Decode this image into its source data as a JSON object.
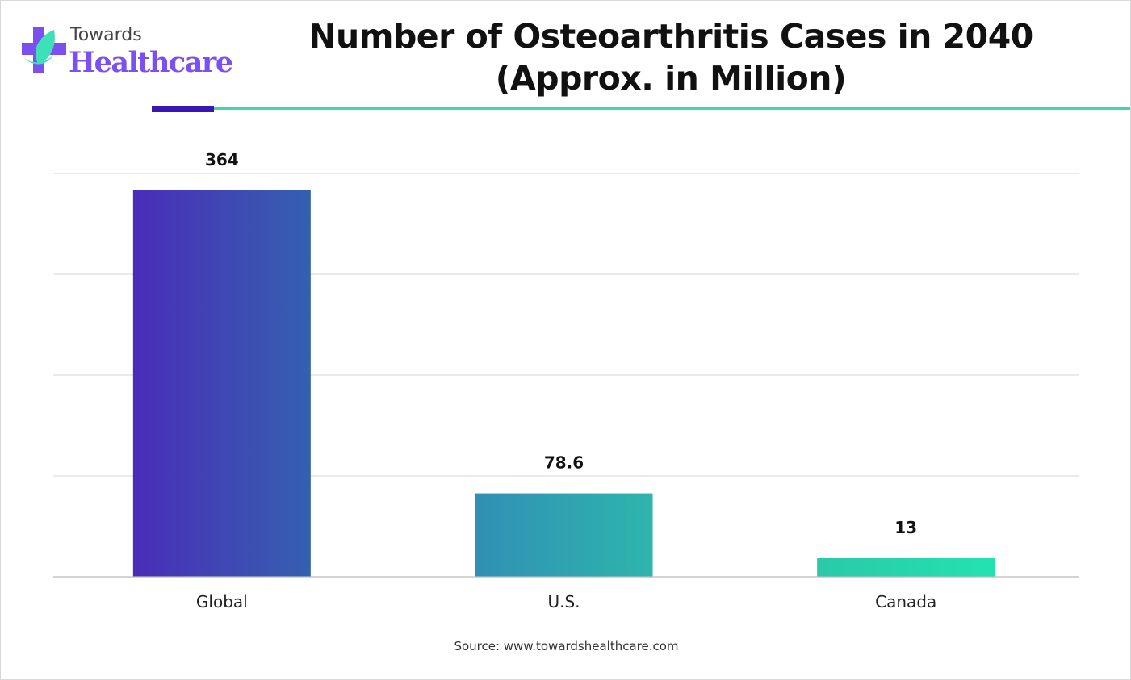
{
  "logo": {
    "line1": "Towards",
    "line2": "Healthcare"
  },
  "title_line1": "Number of Osteoarthritis Cases in 2040",
  "title_line2": "(Approx. in Million)",
  "source": "Source: www.towardshealthcare.com",
  "colors": {
    "accent_dark": "#3a17b5",
    "accent_teal": "#3dd6b0",
    "brand_purple": "#7b4ff0"
  },
  "chart_data": {
    "type": "bar",
    "title": "Number of Osteoarthritis Cases in 2040 (Approx. in Million)",
    "categories": [
      "Global",
      "U.S.",
      "Canada"
    ],
    "values": [
      364,
      78.6,
      13
    ],
    "value_labels": [
      "364",
      "78.6",
      "13"
    ],
    "bar_gradients": [
      [
        "#4a2db8",
        "#3560b0"
      ],
      [
        "#3190b5",
        "#2db5ac"
      ],
      [
        "#2ac9a8",
        "#24e2b0"
      ]
    ],
    "xlabel": "",
    "ylabel": "",
    "grid": true,
    "legend": "none"
  }
}
